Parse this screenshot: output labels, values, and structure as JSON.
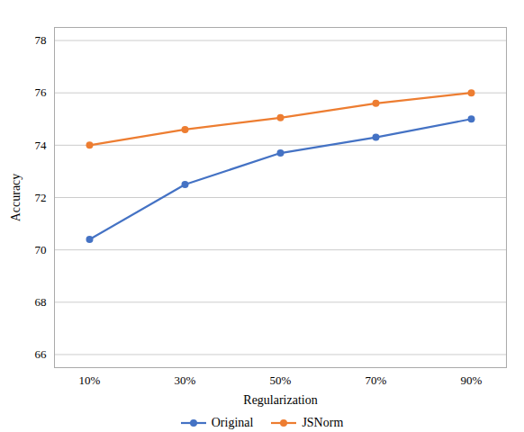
{
  "chart_data": {
    "type": "line",
    "xlabel": "Regularization",
    "ylabel": "Accuracy",
    "categories": [
      "10%",
      "30%",
      "50%",
      "70%",
      "90%"
    ],
    "series": [
      {
        "name": "Original",
        "color": "#4472C4",
        "values": [
          70.4,
          72.5,
          73.7,
          74.3,
          75.0
        ]
      },
      {
        "name": "JSNorm",
        "color": "#ED7D31",
        "values": [
          74.0,
          74.6,
          75.05,
          75.6,
          76.0
        ]
      }
    ],
    "ylim": [
      65.5,
      78.5
    ],
    "yticks": [
      66,
      68,
      70,
      72,
      74,
      76,
      78
    ],
    "grid": true,
    "legend": "bottom",
    "marker": "circle"
  }
}
